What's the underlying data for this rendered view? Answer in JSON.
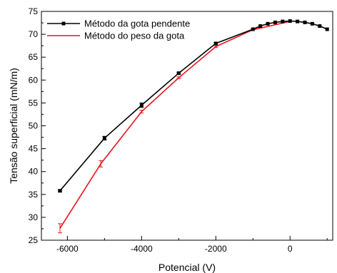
{
  "chart_data": {
    "type": "line",
    "xlabel": "Potencial (V)",
    "ylabel": "Tensão superficial (mN/m)",
    "xlim": [
      -6700,
      1150
    ],
    "ylim": [
      25,
      75
    ],
    "x_ticks": [
      -6000,
      -4000,
      -2000,
      0
    ],
    "y_ticks": [
      25,
      30,
      35,
      40,
      45,
      50,
      55,
      60,
      65,
      70,
      75
    ],
    "x_minor_step": 1000,
    "y_minor_step": 2.5,
    "legend_position": "top-left",
    "grid": false,
    "series": [
      {
        "name": "Método da gota pendente",
        "color": "#000000",
        "marker": "square",
        "points": [
          {
            "x": -6200,
            "y": 35.8,
            "err": 0.2
          },
          {
            "x": -5000,
            "y": 47.3,
            "err": 0.4
          },
          {
            "x": -4000,
            "y": 54.5,
            "err": 0.5
          },
          {
            "x": -3000,
            "y": 61.5,
            "err": 0.2
          },
          {
            "x": -2000,
            "y": 68.0,
            "err": 0.2
          },
          {
            "x": -1000,
            "y": 71.1,
            "err": 0.1
          },
          {
            "x": -800,
            "y": 71.8,
            "err": 0.1
          },
          {
            "x": -600,
            "y": 72.3,
            "err": 0.1
          },
          {
            "x": -400,
            "y": 72.6,
            "err": 0.1
          },
          {
            "x": -200,
            "y": 72.8,
            "err": 0.1
          },
          {
            "x": 0,
            "y": 72.9,
            "err": 0.1
          },
          {
            "x": 200,
            "y": 72.8,
            "err": 0.1
          },
          {
            "x": 400,
            "y": 72.6,
            "err": 0.1
          },
          {
            "x": 600,
            "y": 72.3,
            "err": 0.1
          },
          {
            "x": 800,
            "y": 71.8,
            "err": 0.1
          },
          {
            "x": 1000,
            "y": 71.1,
            "err": 0.1
          }
        ]
      },
      {
        "name": "Método do peso da gota",
        "color": "#e8141c",
        "marker": "none",
        "points": [
          {
            "x": -6200,
            "y": 27.6,
            "err": 1.0
          },
          {
            "x": -5100,
            "y": 41.7,
            "err": 0.7
          },
          {
            "x": -4000,
            "y": 53.1,
            "err": 0.3
          },
          {
            "x": -3000,
            "y": 60.5,
            "err": 0.2
          },
          {
            "x": -2000,
            "y": 67.3,
            "err": 0.2
          },
          {
            "x": -1000,
            "y": 71.0,
            "err": 0.1
          },
          {
            "x": 0,
            "y": 72.8,
            "err": 0.1
          }
        ]
      }
    ]
  }
}
